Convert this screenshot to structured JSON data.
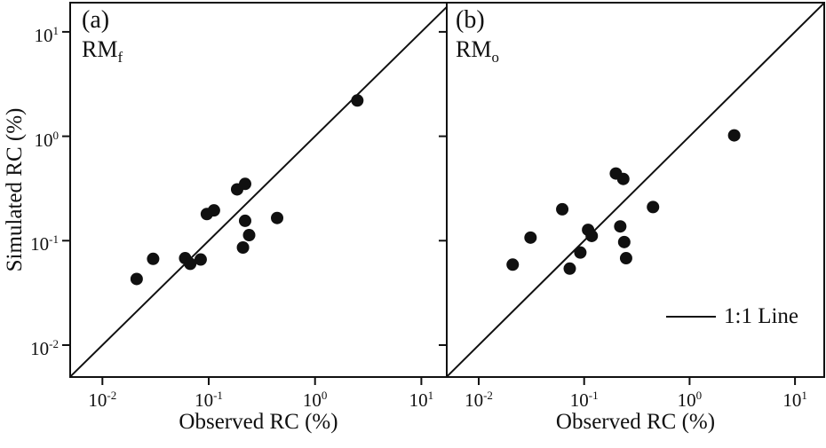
{
  "figure": {
    "y_axis_title": "Simulated RC (%)",
    "x_axis_title": "Observed RC (%)"
  },
  "panels": [
    {
      "tag": "(a)",
      "model_base": "RM",
      "model_sub": "f"
    },
    {
      "tag": "(b)",
      "model_base": "RM",
      "model_sub": "o"
    }
  ],
  "legend": {
    "label": "1:1 Line"
  },
  "colors": {
    "ink": "#101010",
    "background": "#ffffff"
  },
  "axes": {
    "x_ticks": [
      {
        "base": "10",
        "exp": "-2",
        "value": 0.01
      },
      {
        "base": "10",
        "exp": "-1",
        "value": 0.1
      },
      {
        "base": "10",
        "exp": "0",
        "value": 1
      },
      {
        "base": "10",
        "exp": "1",
        "value": 10
      }
    ],
    "y_ticks": [
      {
        "base": "10",
        "exp": "-2",
        "value": 0.01
      },
      {
        "base": "10",
        "exp": "-1",
        "value": 0.1
      },
      {
        "base": "10",
        "exp": "0",
        "value": 1
      },
      {
        "base": "10",
        "exp": "1",
        "value": 10
      }
    ]
  },
  "chart_data": [
    {
      "type": "scatter",
      "panel": "a",
      "panel_label": "RMf",
      "xlabel": "Observed RC (%)",
      "ylabel": "Simulated RC (%)",
      "xscale": "log",
      "yscale": "log",
      "xlim": [
        0.005,
        18
      ],
      "ylim": [
        0.005,
        18
      ],
      "x_tick_values": [
        0.01,
        0.1,
        1,
        10
      ],
      "y_tick_values": [
        0.01,
        0.1,
        1,
        10
      ],
      "reference_line": "1:1",
      "marker": {
        "shape": "circle",
        "color": "#101010"
      },
      "points": [
        [
          2.5,
          2.2
        ],
        [
          0.185,
          0.31
        ],
        [
          0.22,
          0.35
        ],
        [
          0.096,
          0.18
        ],
        [
          0.112,
          0.195
        ],
        [
          0.22,
          0.155
        ],
        [
          0.44,
          0.165
        ],
        [
          0.24,
          0.113
        ],
        [
          0.21,
          0.086
        ],
        [
          0.06,
          0.068
        ],
        [
          0.067,
          0.06
        ],
        [
          0.084,
          0.066
        ],
        [
          0.03,
          0.067
        ],
        [
          0.021,
          0.043
        ]
      ]
    },
    {
      "type": "scatter",
      "panel": "b",
      "panel_label": "RMo",
      "xlabel": "Observed RC (%)",
      "ylabel": "Simulated RC (%)",
      "xscale": "log",
      "yscale": "log",
      "xlim": [
        0.005,
        18
      ],
      "ylim": [
        0.005,
        18
      ],
      "x_tick_values": [
        0.01,
        0.1,
        1,
        10
      ],
      "y_tick_values": [
        0.01,
        0.1,
        1,
        10
      ],
      "reference_line": "1:1",
      "legend_entry": "1:1 Line",
      "marker": {
        "shape": "circle",
        "color": "#101010"
      },
      "points": [
        [
          2.65,
          1.02
        ],
        [
          0.2,
          0.44
        ],
        [
          0.235,
          0.39
        ],
        [
          0.45,
          0.21
        ],
        [
          0.062,
          0.2
        ],
        [
          0.031,
          0.107
        ],
        [
          0.021,
          0.059
        ],
        [
          0.109,
          0.127
        ],
        [
          0.118,
          0.111
        ],
        [
          0.092,
          0.077
        ],
        [
          0.073,
          0.054
        ],
        [
          0.22,
          0.137
        ],
        [
          0.24,
          0.097
        ],
        [
          0.25,
          0.068
        ]
      ]
    }
  ]
}
